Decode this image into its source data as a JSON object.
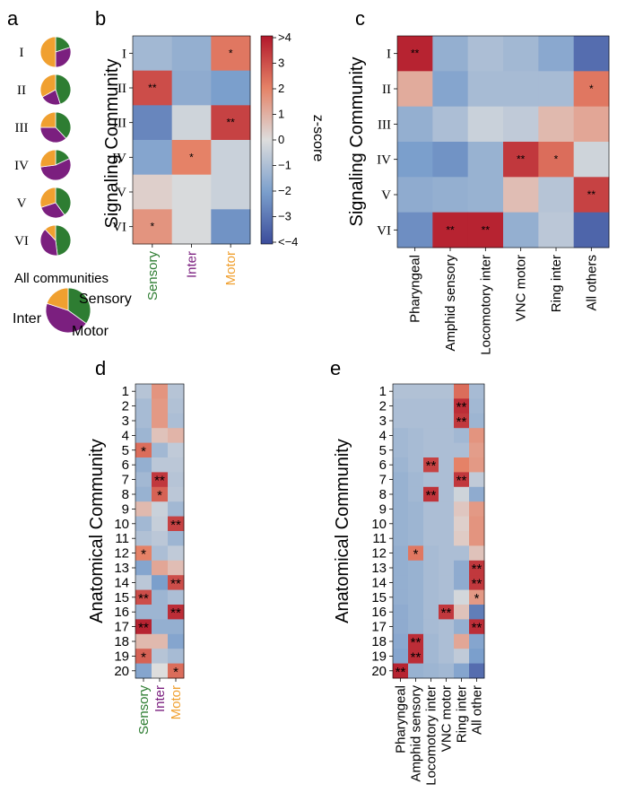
{
  "colors": {
    "sensory": "#2e7d32",
    "inter": "#7b1f7f",
    "motor": "#f0a030"
  },
  "labels": {
    "a": "a",
    "b": "b",
    "c": "c",
    "d": "d",
    "e": "e",
    "signaling_community": "Signaling Community",
    "anatomical_community": "Anatomical Community",
    "all_communities": "All communities",
    "sensory": "Sensory",
    "inter": "Inter",
    "motor": "Motor",
    "zscore": "z-score"
  },
  "chart_data": [
    {
      "panel": "a",
      "type": "pie",
      "rows": [
        "I",
        "II",
        "III",
        "IV",
        "V",
        "VI"
      ],
      "categories": [
        "Sensory",
        "Inter",
        "Motor"
      ],
      "values": [
        [
          20,
          30,
          50
        ],
        [
          45,
          22,
          33
        ],
        [
          38,
          37,
          25
        ],
        [
          18,
          55,
          27
        ],
        [
          40,
          30,
          30
        ],
        [
          48,
          40,
          12
        ]
      ],
      "all_communities": [
        35,
        45,
        20
      ]
    },
    {
      "panel": "b",
      "type": "heatmap",
      "ylabel": "Signaling Community",
      "rows": [
        "I",
        "II",
        "III",
        "IV",
        "V",
        "VI"
      ],
      "columns": [
        "Sensory",
        "Inter",
        "Motor"
      ],
      "z": [
        [
          -1.2,
          -1.5,
          2.2
        ],
        [
          3.0,
          -1.6,
          -2.0
        ],
        [
          -2.6,
          -0.3,
          3.2
        ],
        [
          -1.8,
          2.0,
          -0.4
        ],
        [
          0.3,
          -0.1,
          -0.4
        ],
        [
          1.6,
          -0.1,
          -2.3
        ]
      ],
      "stars": [
        [
          "",
          "",
          "*"
        ],
        [
          "**",
          "",
          ""
        ],
        [
          "",
          "",
          "**"
        ],
        [
          "",
          "*",
          ""
        ],
        [
          "",
          "",
          ""
        ],
        [
          "*",
          "",
          ""
        ]
      ]
    },
    {
      "panel": "colorbar",
      "type": "colorbar",
      "label": "z-score",
      "range": [
        -4,
        4
      ],
      "ticks": [
        ">4",
        "3",
        "2",
        "1",
        "0",
        "−1",
        "−2",
        "−3",
        "<−4"
      ]
    },
    {
      "panel": "c",
      "type": "heatmap",
      "ylabel": "Signaling Community",
      "rows": [
        "I",
        "II",
        "III",
        "IV",
        "V",
        "VI"
      ],
      "columns": [
        "Pharyngeal",
        "Amphid sensory",
        "Locomotory inter",
        "VNC motor",
        "Ring inter",
        "All others"
      ],
      "z": [
        [
          3.8,
          -1.5,
          -1.0,
          -1.2,
          -1.7,
          -3.2
        ],
        [
          1.1,
          -1.8,
          -1.1,
          -1.1,
          -1.1,
          2.2
        ],
        [
          -1.5,
          -1.0,
          -0.4,
          -0.6,
          0.8,
          1.2
        ],
        [
          -2.0,
          -2.3,
          -1.4,
          3.4,
          2.4,
          -0.3
        ],
        [
          -1.6,
          -1.5,
          -1.4,
          0.7,
          -0.8,
          3.2
        ],
        [
          -2.4,
          3.8,
          3.8,
          -1.5,
          -0.7,
          -3.4
        ]
      ],
      "stars": [
        [
          "**",
          "",
          "",
          "",
          "",
          ""
        ],
        [
          "",
          "",
          "",
          "",
          "",
          "*"
        ],
        [
          "",
          "",
          "",
          "",
          "",
          ""
        ],
        [
          "",
          "",
          "",
          "**",
          "*",
          ""
        ],
        [
          "",
          "",
          "",
          "",
          "",
          "**"
        ],
        [
          "",
          "**",
          "**",
          "",
          "",
          ""
        ]
      ]
    },
    {
      "panel": "d",
      "type": "heatmap",
      "ylabel": "Anatomical Community",
      "rows": [
        "1",
        "2",
        "3",
        "4",
        "5",
        "6",
        "7",
        "8",
        "9",
        "10",
        "11",
        "12",
        "13",
        "14",
        "15",
        "16",
        "17",
        "18",
        "19",
        "20"
      ],
      "columns": [
        "Sensory",
        "Inter",
        "Motor"
      ],
      "z": [
        [
          -0.8,
          1.6,
          -0.8
        ],
        [
          -1.1,
          1.5,
          -0.9
        ],
        [
          -1.1,
          1.5,
          -1.0
        ],
        [
          -1.3,
          0.6,
          0.9
        ],
        [
          2.4,
          -1.2,
          -0.6
        ],
        [
          -1.5,
          -0.7,
          -0.7
        ],
        [
          -1.2,
          3.4,
          -0.8
        ],
        [
          -1.4,
          2.6,
          -0.7
        ],
        [
          0.8,
          -0.4,
          -1.2
        ],
        [
          -1.2,
          -0.5,
          3.2
        ],
        [
          -0.9,
          -0.7,
          -1.3
        ],
        [
          2.0,
          -1.0,
          -0.6
        ],
        [
          -1.8,
          1.2,
          0.7
        ],
        [
          -0.7,
          -2.0,
          3.0
        ],
        [
          3.0,
          -1.3,
          -1.0
        ],
        [
          -1.3,
          -1.3,
          3.6
        ],
        [
          3.8,
          -1.5,
          -1.5
        ],
        [
          0.8,
          0.8,
          -1.8
        ],
        [
          2.6,
          -0.8,
          -1.1
        ],
        [
          -1.8,
          0.0,
          2.4
        ]
      ],
      "stars": [
        [
          "",
          "",
          ""
        ],
        [
          "",
          "",
          ""
        ],
        [
          "",
          "",
          ""
        ],
        [
          "",
          "",
          ""
        ],
        [
          "*",
          "",
          ""
        ],
        [
          "",
          "",
          ""
        ],
        [
          "",
          "**",
          ""
        ],
        [
          "",
          "*",
          ""
        ],
        [
          "",
          "",
          ""
        ],
        [
          "",
          "",
          "**"
        ],
        [
          "",
          "",
          ""
        ],
        [
          "*",
          "",
          ""
        ],
        [
          "",
          "",
          ""
        ],
        [
          "",
          "",
          "**"
        ],
        [
          "**",
          "",
          ""
        ],
        [
          "",
          "",
          "**"
        ],
        [
          "**",
          "",
          ""
        ],
        [
          "",
          "",
          ""
        ],
        [
          "*",
          "",
          ""
        ],
        [
          "",
          "",
          "*"
        ]
      ]
    },
    {
      "panel": "e",
      "type": "heatmap",
      "ylabel": "Anatomical Community",
      "rows": [
        "1",
        "2",
        "3",
        "4",
        "5",
        "6",
        "7",
        "8",
        "9",
        "10",
        "11",
        "12",
        "13",
        "14",
        "15",
        "16",
        "17",
        "18",
        "19",
        "20"
      ],
      "columns": [
        "Pharyngeal",
        "Amphid sensory",
        "Locomotory inter",
        "VNC motor",
        "Ring inter",
        "All other"
      ],
      "z": [
        [
          -0.9,
          -0.9,
          -0.9,
          -0.9,
          2.4,
          -1.1
        ],
        [
          -1.0,
          -1.0,
          -1.0,
          -1.0,
          3.6,
          -1.2
        ],
        [
          -1.0,
          -1.0,
          -1.0,
          -1.0,
          3.4,
          -1.3
        ],
        [
          -1.2,
          -1.1,
          -1.0,
          -1.0,
          -1.2,
          1.6
        ],
        [
          -1.2,
          -1.1,
          -1.0,
          -1.0,
          -1.0,
          1.4
        ],
        [
          -1.3,
          -1.1,
          3.2,
          -1.0,
          2.0,
          1.5
        ],
        [
          -1.4,
          -1.2,
          -1.0,
          -1.0,
          3.4,
          -0.6
        ],
        [
          -1.4,
          -1.2,
          3.5,
          -1.0,
          -0.3,
          -1.6
        ],
        [
          -1.4,
          -1.3,
          -1.0,
          -1.0,
          0.5,
          1.5
        ],
        [
          -1.4,
          -1.3,
          -1.0,
          -1.0,
          0.3,
          1.6
        ],
        [
          -1.4,
          -1.3,
          -1.0,
          -1.0,
          0.4,
          1.6
        ],
        [
          -1.5,
          2.2,
          -1.1,
          -1.0,
          -1.0,
          0.6
        ],
        [
          -1.5,
          -1.4,
          -1.1,
          -1.0,
          -1.6,
          3.4
        ],
        [
          -1.5,
          -1.4,
          -1.1,
          -1.0,
          -1.6,
          3.4
        ],
        [
          -1.5,
          -1.4,
          -1.1,
          -1.0,
          -0.2,
          1.5
        ],
        [
          -1.6,
          -1.4,
          -1.1,
          3.4,
          0.6,
          -2.8
        ],
        [
          -1.6,
          -1.4,
          -1.1,
          -1.0,
          -1.5,
          3.6
        ],
        [
          -1.7,
          3.6,
          -1.2,
          -1.0,
          1.2,
          -1.8
        ],
        [
          -1.8,
          3.6,
          -1.2,
          -1.0,
          -0.6,
          -2.0
        ],
        [
          3.8,
          -1.4,
          -1.3,
          -1.2,
          -1.8,
          -3.2
        ]
      ],
      "stars": [
        [
          "",
          "",
          "",
          "",
          "",
          ""
        ],
        [
          "",
          "",
          "",
          "",
          "**",
          ""
        ],
        [
          "",
          "",
          "",
          "",
          "**",
          ""
        ],
        [
          "",
          "",
          "",
          "",
          "",
          ""
        ],
        [
          "",
          "",
          "",
          "",
          "",
          ""
        ],
        [
          "",
          "",
          "**",
          "",
          "",
          ""
        ],
        [
          "",
          "",
          "",
          "",
          "**",
          ""
        ],
        [
          "",
          "",
          "**",
          "",
          "",
          ""
        ],
        [
          "",
          "",
          "",
          "",
          "",
          ""
        ],
        [
          "",
          "",
          "",
          "",
          "",
          ""
        ],
        [
          "",
          "",
          "",
          "",
          "",
          ""
        ],
        [
          "",
          "*",
          "",
          "",
          "",
          ""
        ],
        [
          "",
          "",
          "",
          "",
          "",
          "**"
        ],
        [
          "",
          "",
          "",
          "",
          "",
          "**"
        ],
        [
          "",
          "",
          "",
          "",
          "",
          "*"
        ],
        [
          "",
          "",
          "",
          "**",
          "",
          ""
        ],
        [
          "",
          "",
          "",
          "",
          "",
          "**"
        ],
        [
          "",
          "**",
          "",
          "",
          "",
          ""
        ],
        [
          "",
          "**",
          "",
          "",
          "",
          ""
        ],
        [
          "**",
          "",
          "",
          "",
          "",
          ""
        ]
      ]
    }
  ]
}
